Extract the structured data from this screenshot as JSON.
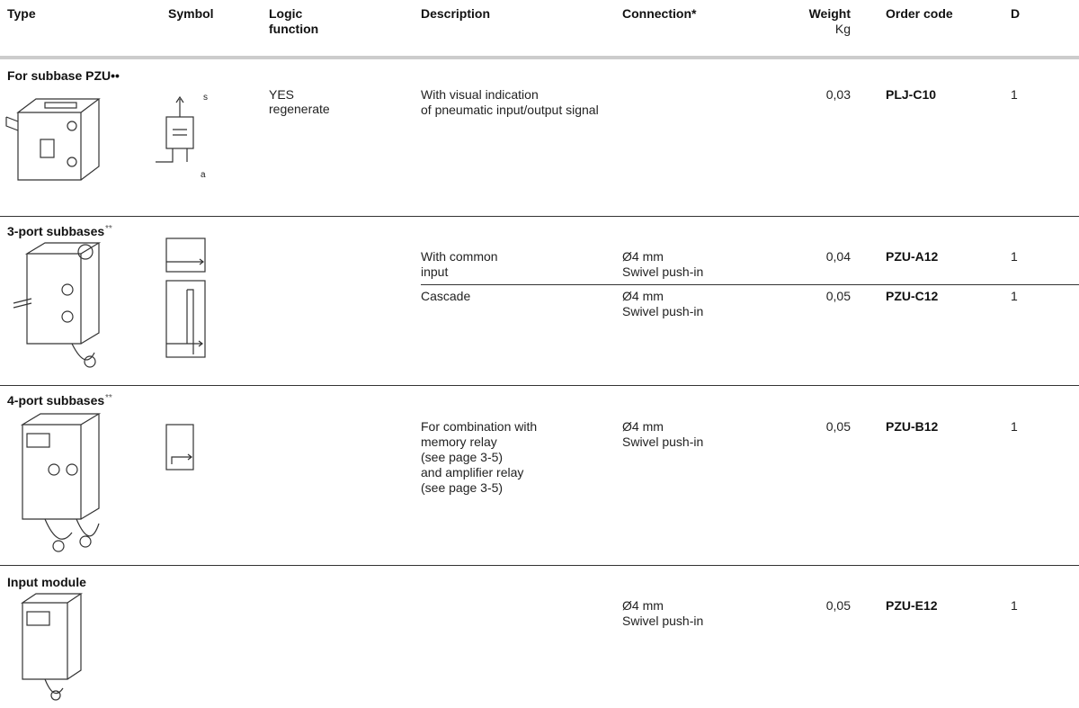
{
  "header": {
    "columns": {
      "type": "Type",
      "symbol": "Symbol",
      "logic": [
        "Logic",
        "function"
      ],
      "description": "Description",
      "connection": "Connection*",
      "weight": "Weight",
      "weight_unit": "Kg",
      "order_code": "Order code",
      "d": "D"
    }
  },
  "sections": [
    {
      "title": "For subbase PZU••",
      "symbol_labels": [
        "s",
        "a"
      ],
      "rows": [
        {
          "logic": [
            "YES",
            "regenerate"
          ],
          "description": [
            "With visual indication",
            "of pneumatic input/output signal"
          ],
          "weight": "0,03",
          "order_code": "PLJ-C10",
          "d": "1"
        }
      ]
    },
    {
      "title": "3-port subbases",
      "title_note": "**",
      "rows": [
        {
          "description": [
            "With common",
            "input"
          ],
          "connection": [
            "Ø4 mm",
            "Swivel push-in"
          ],
          "weight": "0,04",
          "order_code": "PZU-A12",
          "d": "1"
        },
        {
          "description": [
            "Cascade"
          ],
          "connection": [
            "Ø4 mm",
            "Swivel push-in"
          ],
          "weight": "0,05",
          "order_code": "PZU-C12",
          "d": "1"
        }
      ]
    },
    {
      "title": "4-port subbases",
      "title_note": "**",
      "rows": [
        {
          "description": [
            "For combination with",
            "memory relay",
            "(see page 3-5)",
            "and amplifier relay",
            "(see page 3-5)"
          ],
          "connection": [
            "Ø4 mm",
            "Swivel push-in"
          ],
          "weight": "0,05",
          "order_code": "PZU-B12",
          "d": "1"
        }
      ]
    },
    {
      "title": "Input module",
      "rows": [
        {
          "connection": [
            "Ø4 mm",
            "Swivel push-in"
          ],
          "weight": "0,05",
          "order_code": "PZU-E12",
          "d": "1"
        }
      ]
    }
  ]
}
